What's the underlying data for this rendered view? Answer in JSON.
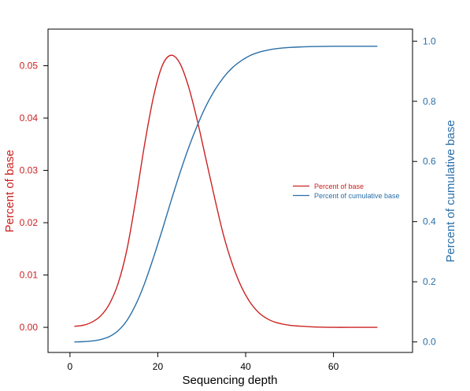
{
  "chart_data": {
    "type": "line",
    "title": "",
    "xlabel": "Sequencing depth",
    "ylabel_left": "Percent of base",
    "ylabel_right": "Percent of cumulative base",
    "xlim": [
      -5,
      78
    ],
    "ylim_left": [
      -0.0048,
      0.057
    ],
    "ylim_right": [
      -0.035,
      1.04
    ],
    "x_ticks": [
      0,
      20,
      40,
      60
    ],
    "y_left_ticks": [
      0.0,
      0.01,
      0.02,
      0.03,
      0.04,
      0.05
    ],
    "y_left_tick_labels": [
      "0.00",
      "0.01",
      "0.02",
      "0.03",
      "0.04",
      "0.05"
    ],
    "y_right_ticks": [
      0.0,
      0.2,
      0.4,
      0.6,
      0.8,
      1.0
    ],
    "y_right_tick_labels": [
      "0.0",
      "0.2",
      "0.4",
      "0.6",
      "0.8",
      "1.0"
    ],
    "grid": false,
    "legend_position": "right",
    "series": [
      {
        "name": "Percent of base",
        "axis": "left",
        "color": "#cc2222",
        "x": [
          1,
          3,
          5,
          7,
          9,
          11,
          13,
          15,
          17,
          19,
          21,
          23,
          25,
          27,
          29,
          31,
          33,
          35,
          37,
          39,
          41,
          43,
          45,
          47,
          50,
          55,
          60,
          65,
          70
        ],
        "values": [
          0.0002,
          0.0004,
          0.001,
          0.0022,
          0.0045,
          0.0085,
          0.015,
          0.0245,
          0.035,
          0.044,
          0.05,
          0.052,
          0.0505,
          0.046,
          0.0395,
          0.032,
          0.0245,
          0.0175,
          0.012,
          0.0078,
          0.0048,
          0.0028,
          0.0016,
          0.0009,
          0.0004,
          0.0001,
          0.0,
          0.0,
          0.0
        ]
      },
      {
        "name": "Percent of cumulative base",
        "axis": "right",
        "color": "#2a6fa8",
        "x": [
          1,
          3,
          5,
          7,
          9,
          11,
          13,
          15,
          17,
          19,
          21,
          23,
          25,
          27,
          29,
          31,
          33,
          35,
          37,
          39,
          41,
          43,
          45,
          47,
          50,
          55,
          60,
          65,
          70
        ],
        "values": [
          0.0,
          0.001,
          0.003,
          0.008,
          0.018,
          0.038,
          0.072,
          0.125,
          0.195,
          0.28,
          0.372,
          0.468,
          0.56,
          0.645,
          0.72,
          0.785,
          0.838,
          0.88,
          0.912,
          0.935,
          0.952,
          0.963,
          0.97,
          0.975,
          0.979,
          0.982,
          0.983,
          0.983,
          0.983
        ]
      }
    ]
  }
}
